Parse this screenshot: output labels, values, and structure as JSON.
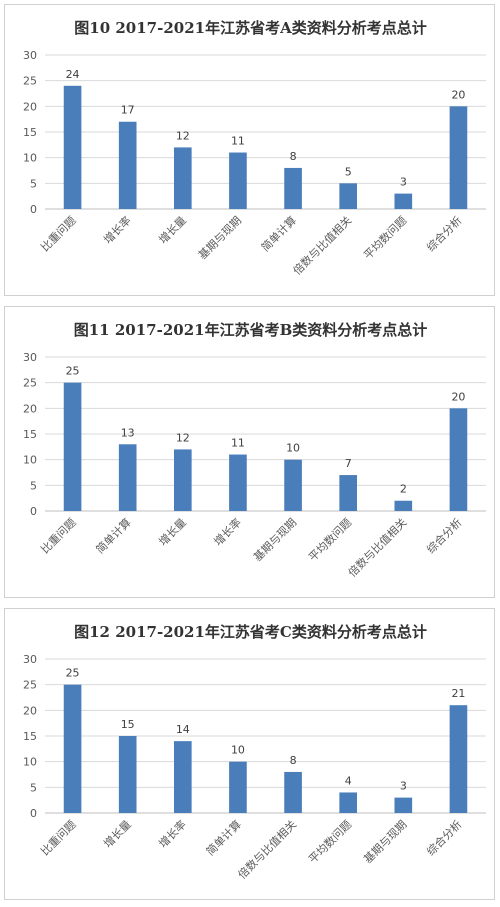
{
  "colors": {
    "bar": "#4a7ebb",
    "grid": "#d9d9d9",
    "axis": "#bfbfbf"
  },
  "chart_data": [
    {
      "type": "bar",
      "title": "图10 2017-2021年江苏省考A类资料分析考点总计",
      "categories": [
        "比重问题",
        "增长率",
        "增长量",
        "基期与现期",
        "简单计算",
        "倍数与比值相关",
        "平均数问题",
        "综合分析"
      ],
      "values": [
        24,
        17,
        12,
        11,
        8,
        5,
        3,
        20
      ],
      "ylim": [
        0,
        30
      ],
      "yticks": [
        0,
        5,
        10,
        15,
        20,
        25,
        30
      ],
      "grid": true
    },
    {
      "type": "bar",
      "title": "图11 2017-2021年江苏省考B类资料分析考点总计",
      "categories": [
        "比重问题",
        "简单计算",
        "增长量",
        "增长率",
        "基期与现期",
        "平均数问题",
        "倍数与比值相关",
        "综合分析"
      ],
      "values": [
        25,
        13,
        12,
        11,
        10,
        7,
        2,
        20
      ],
      "ylim": [
        0,
        30
      ],
      "yticks": [
        0,
        5,
        10,
        15,
        20,
        25,
        30
      ],
      "grid": true
    },
    {
      "type": "bar",
      "title": "图12 2017-2021年江苏省考C类资料分析考点总计",
      "categories": [
        "比重问题",
        "增长量",
        "增长率",
        "简单计算",
        "倍数与比值相关",
        "平均数问题",
        "基期与现期",
        "综合分析"
      ],
      "values": [
        25,
        15,
        14,
        10,
        8,
        4,
        3,
        21
      ],
      "ylim": [
        0,
        30
      ],
      "yticks": [
        0,
        5,
        10,
        15,
        20,
        25,
        30
      ],
      "grid": true
    }
  ]
}
